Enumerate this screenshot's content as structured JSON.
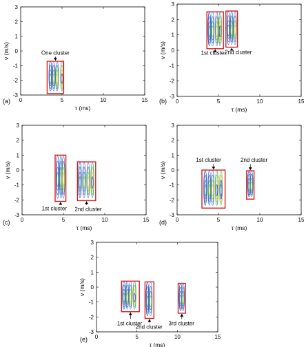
{
  "chart_data": [
    {
      "type": "contour",
      "panel_label": "(a)",
      "xlabel": "τ (ms)",
      "ylabel": "v (m/s)",
      "xlim": [
        0,
        15
      ],
      "ylim": [
        -3,
        3
      ],
      "xticks": [
        "0",
        "5",
        "10",
        "15"
      ],
      "yticks": [
        "3",
        "2",
        "1",
        "0",
        "-1",
        "-2",
        "-3"
      ],
      "clusters": [
        {
          "x_range": [
            3.2,
            5.2
          ],
          "y_range": [
            -2.9,
            -0.7
          ],
          "stripes": [
            3.6,
            4.0,
            4.4,
            5.0
          ]
        }
      ],
      "annotations": [
        {
          "text": "One cluster",
          "x": 4.2,
          "y": -0.25
        }
      ]
    },
    {
      "type": "contour",
      "panel_label": "(b)",
      "xlabel": "τ (ms)",
      "ylabel": "v (m/s)",
      "xlim": [
        0,
        15
      ],
      "ylim": [
        -3,
        3
      ],
      "xticks": [
        "0",
        "5",
        "10",
        "15"
      ],
      "yticks": [
        "3",
        "2",
        "1",
        "0",
        "-1",
        "-2",
        "-3"
      ],
      "clusters": [
        {
          "x_range": [
            3.6,
            5.6
          ],
          "y_range": [
            0.1,
            2.5
          ],
          "stripes": [
            3.9,
            4.3,
            4.8,
            5.2
          ]
        },
        {
          "x_range": [
            5.9,
            7.3
          ],
          "y_range": [
            0.2,
            2.55
          ],
          "stripes": [
            6.2,
            6.6,
            7.0
          ]
        }
      ],
      "annotations": [
        {
          "text": "1st cluster",
          "x": 4.4,
          "y": -0.3
        },
        {
          "text": "2nd cluster",
          "x": 7.4,
          "y": -0.25
        }
      ]
    },
    {
      "type": "contour",
      "panel_label": "(c)",
      "xlabel": "τ (ms)",
      "ylabel": "v (m/s)",
      "xlim": [
        0,
        15
      ],
      "ylim": [
        -3,
        3
      ],
      "xticks": [
        "0",
        "5",
        "10",
        "15"
      ],
      "yticks": [
        "3",
        "2",
        "1",
        "0",
        "-1",
        "-2",
        "-3"
      ],
      "clusters": [
        {
          "x_range": [
            4.0,
            5.3
          ],
          "y_range": [
            -2.1,
            1.0
          ],
          "stripes": [
            4.3,
            4.7,
            5.0
          ]
        },
        {
          "x_range": [
            6.7,
            8.9
          ],
          "y_range": [
            -2.05,
            0.55
          ],
          "stripes": [
            7.0,
            7.5,
            8.0,
            8.5
          ]
        }
      ],
      "annotations": [
        {
          "text": "1st cluster",
          "x": 3.9,
          "y": -2.7
        },
        {
          "text": "2nd cluster",
          "x": 8.0,
          "y": -2.75
        }
      ]
    },
    {
      "type": "contour",
      "panel_label": "(d)",
      "xlabel": "τ (ms)",
      "ylabel": "v (m/s)",
      "xlim": [
        0,
        15
      ],
      "ylim": [
        -3,
        3
      ],
      "xticks": [
        "0",
        "5",
        "10",
        "15"
      ],
      "yticks": [
        "3",
        "2",
        "1",
        "0",
        "-1",
        "-2",
        "-3"
      ],
      "clusters": [
        {
          "x_range": [
            3.0,
            5.8
          ],
          "y_range": [
            -2.55,
            0.0
          ],
          "stripes": [
            3.4,
            3.9,
            4.3,
            4.8,
            5.3
          ]
        },
        {
          "x_range": [
            8.4,
            9.3
          ],
          "y_range": [
            -1.95,
            -0.05
          ],
          "stripes": [
            8.7,
            9.0
          ]
        }
      ],
      "annotations": [
        {
          "text": "1st cluster",
          "x": 3.8,
          "y": 0.55
        },
        {
          "text": "2nd cluster",
          "x": 9.3,
          "y": 0.55
        }
      ]
    },
    {
      "type": "contour",
      "panel_label": "(e)",
      "xlabel": "τ (ms)",
      "ylabel": "v (m/s)",
      "xlim": [
        0,
        15
      ],
      "ylim": [
        -3,
        3
      ],
      "xticks": [
        "0",
        "5",
        "10",
        "15"
      ],
      "yticks": [
        "3",
        "2",
        "1",
        "0",
        "-1",
        "-2",
        "-3"
      ],
      "clusters": [
        {
          "x_range": [
            3.1,
            5.3
          ],
          "y_range": [
            -1.65,
            0.4
          ],
          "stripes": [
            3.4,
            3.8,
            4.2,
            4.7
          ]
        },
        {
          "x_range": [
            6.0,
            7.1
          ],
          "y_range": [
            -2.1,
            0.35
          ],
          "stripes": [
            6.3,
            6.7
          ]
        },
        {
          "x_range": [
            10.1,
            11.0
          ],
          "y_range": [
            -1.75,
            0.25
          ],
          "stripes": [
            10.4,
            10.7
          ]
        }
      ],
      "annotations": [
        {
          "text": "1st cluster",
          "x": 4.1,
          "y": -2.55
        },
        {
          "text": "2nd cluster",
          "x": 6.5,
          "y": -2.8
        },
        {
          "text": "3rd cluster",
          "x": 10.5,
          "y": -2.55
        }
      ]
    }
  ],
  "colors": {
    "box": "#d91c1c",
    "axis": "#000000",
    "contours": [
      "#1f3fb0",
      "#3a7fd6",
      "#6a5fb8",
      "#2c9c8f",
      "#8fbf3a",
      "#d4c84a"
    ]
  }
}
